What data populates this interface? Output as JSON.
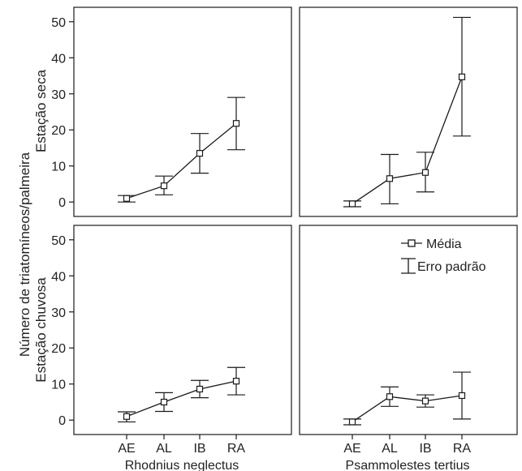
{
  "figure": {
    "ylabel_shared": "Número de triatomíneos/palmeira",
    "row_labels": [
      "Estação seca",
      "Estação chuvosa"
    ],
    "legend": {
      "mean_label": "Média",
      "error_label": "Erro padrão"
    }
  },
  "chart_data": [
    {
      "type": "line",
      "panel": "top-left",
      "row": "Estação seca",
      "column": "Rhodnius neglectus",
      "categories": [
        "AE",
        "AL",
        "IB",
        "RA"
      ],
      "series": [
        {
          "name": "Média",
          "values": [
            1,
            4.5,
            13.5,
            21.8
          ]
        }
      ],
      "error_low": [
        0,
        2,
        8,
        14.5
      ],
      "error_high": [
        1.8,
        7.2,
        19,
        29
      ],
      "ylim": [
        -4,
        54
      ],
      "yticks": [
        0,
        10,
        20,
        30,
        40,
        50
      ],
      "xlabel": "",
      "grid": false
    },
    {
      "type": "line",
      "panel": "top-right",
      "row": "Estação seca",
      "column": "Psammolestes tertius",
      "categories": [
        "AE",
        "AL",
        "IB",
        "RA"
      ],
      "series": [
        {
          "name": "Média",
          "values": [
            -0.5,
            6.5,
            8.2,
            34.7
          ]
        }
      ],
      "error_low": [
        -1.3,
        -0.5,
        2.8,
        18.3
      ],
      "error_high": [
        0.3,
        13.2,
        13.8,
        51.2
      ],
      "ylim": [
        -4,
        54
      ],
      "yticks": [],
      "xlabel": "",
      "grid": false
    },
    {
      "type": "line",
      "panel": "bottom-left",
      "row": "Estação chuvosa",
      "column": "Rhodnius neglectus",
      "categories": [
        "AE",
        "AL",
        "IB",
        "RA"
      ],
      "series": [
        {
          "name": "Média",
          "values": [
            1,
            5,
            8.6,
            10.8
          ]
        }
      ],
      "error_low": [
        -0.5,
        2.4,
        6.2,
        7
      ],
      "error_high": [
        2.3,
        7.6,
        11,
        14.6
      ],
      "ylim": [
        -4,
        54
      ],
      "yticks": [
        0,
        10,
        20,
        30,
        40,
        50
      ],
      "xlabel": "Rhodnius neglectus",
      "xtick_labels": [
        "AE",
        "AL",
        "IB",
        "RA"
      ],
      "grid": false
    },
    {
      "type": "line",
      "panel": "bottom-right",
      "row": "Estação chuvosa",
      "column": "Psammolestes tertius",
      "categories": [
        "AE",
        "AL",
        "IB",
        "RA"
      ],
      "series": [
        {
          "name": "Média",
          "values": [
            -0.5,
            6.5,
            5.3,
            6.8
          ]
        }
      ],
      "error_low": [
        -1.3,
        3.8,
        3.6,
        0.3
      ],
      "error_high": [
        0.3,
        9.2,
        7,
        13.3
      ],
      "ylim": [
        -4,
        54
      ],
      "yticks": [],
      "xlabel": "Psammolestes tertius",
      "xtick_labels": [
        "AE",
        "AL",
        "IB",
        "RA"
      ],
      "grid": false
    }
  ]
}
